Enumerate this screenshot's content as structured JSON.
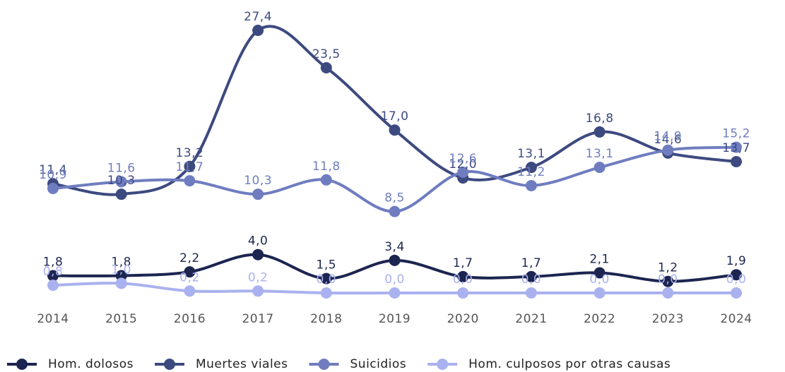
{
  "chart_data": {
    "type": "line",
    "categories": [
      "2014",
      "2015",
      "2016",
      "2017",
      "2018",
      "2019",
      "2020",
      "2021",
      "2022",
      "2023",
      "2024"
    ],
    "series": [
      {
        "name": "Hom. dolosos",
        "color": "#1c2550",
        "values": [
          1.8,
          1.8,
          2.2,
          4.0,
          1.5,
          3.4,
          1.7,
          1.7,
          2.1,
          1.2,
          1.9
        ],
        "value_labels": [
          "1,8",
          "1,8",
          "2,2",
          "4,0",
          "1,5",
          "3,4",
          "1,7",
          "1,7",
          "2,1",
          "1,2",
          "1,9"
        ]
      },
      {
        "name": "Muertes viales",
        "color": "#3d4a80",
        "values": [
          11.4,
          10.3,
          13.2,
          27.4,
          23.5,
          17.0,
          12.0,
          13.1,
          16.8,
          14.6,
          13.7
        ],
        "value_labels": [
          "11,4",
          "10,3",
          "13,2",
          "27,4",
          "23,5",
          "17,0",
          "12,0",
          "13,1",
          "16,8",
          "14,6",
          "13,7"
        ]
      },
      {
        "name": "Suicidios",
        "color": "#6f7dc0",
        "values": [
          10.9,
          11.6,
          11.7,
          10.3,
          11.8,
          8.5,
          12.6,
          11.2,
          13.1,
          14.9,
          15.2
        ],
        "value_labels": [
          "10,9",
          "11,6",
          "11,7",
          "10,3",
          "11,8",
          "8,5",
          "12,6",
          "11,2",
          "13,1",
          "14,9",
          "15,2"
        ]
      },
      {
        "name": "Hom. culposos por otras causas",
        "color": "#a9b1ef",
        "values": [
          0.8,
          1.0,
          0.2,
          0.2,
          0.0,
          0.0,
          0.0,
          0.0,
          0.0,
          0.0,
          0.0
        ],
        "value_labels": [
          "0,8",
          "1,0",
          "0,2",
          "0,2",
          "0,0",
          "0,0",
          "0,0",
          "0,0",
          "0,0",
          "0,0",
          "0,0"
        ]
      }
    ],
    "legend": "bottom"
  }
}
